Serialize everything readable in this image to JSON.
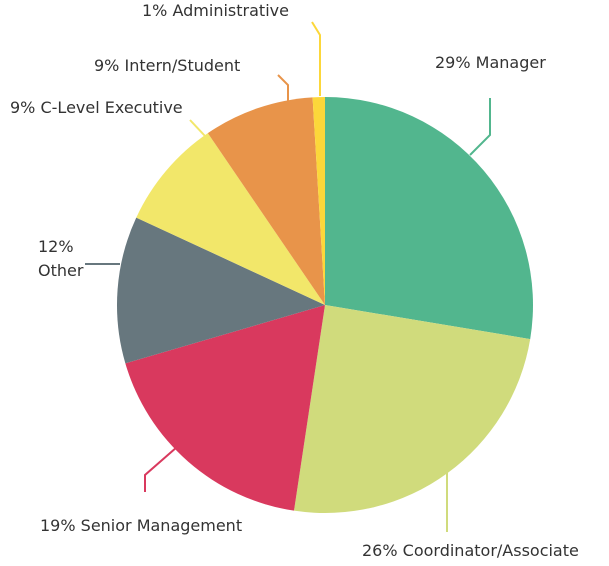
{
  "chart_data": {
    "type": "pie",
    "categories": [
      "Manager",
      "Coordinator/Associate",
      "Senior Management",
      "Other",
      "C-Level Executive",
      "Intern/Student",
      "Administrative"
    ],
    "values": [
      29,
      26,
      19,
      12,
      9,
      9,
      1
    ],
    "value_labels": [
      "29%",
      "26%",
      "19%",
      "12%",
      "9%",
      "9%",
      "1%"
    ],
    "colors": [
      "#52b68e",
      "#d0db7c",
      "#d9395e",
      "#67777e",
      "#f2e76a",
      "#e8944a",
      "#fcd73a"
    ]
  }
}
